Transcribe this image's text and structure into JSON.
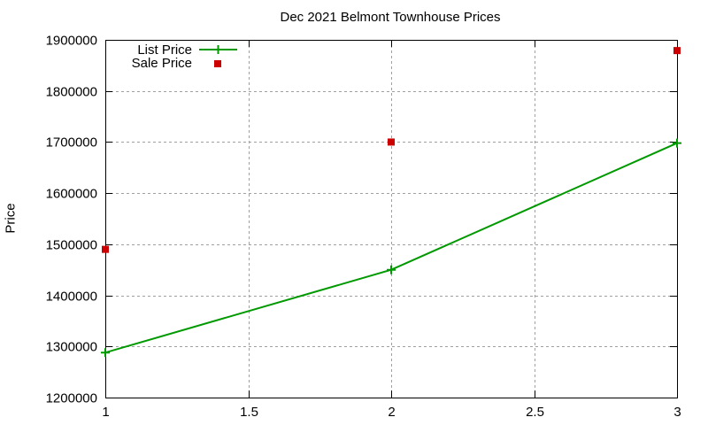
{
  "chart_data": {
    "type": "line",
    "title": "Dec 2021 Belmont Townhouse Prices",
    "xlabel": "",
    "ylabel": "Price",
    "x": [
      1,
      2,
      3
    ],
    "xlim": [
      1,
      3
    ],
    "ylim": [
      1200000,
      1900000
    ],
    "xticks": [
      "1",
      "1.5",
      "2",
      "2.5",
      "3"
    ],
    "yticks": [
      "1200000",
      "1300000",
      "1400000",
      "1500000",
      "1600000",
      "1700000",
      "1800000",
      "1900000"
    ],
    "grid": true,
    "legend_position": "top-left",
    "series": [
      {
        "name": "List Price",
        "style": "linespoints",
        "marker": "plus",
        "color": "#009900",
        "values": [
          1288000,
          1450000,
          1698000
        ]
      },
      {
        "name": "Sale Price",
        "style": "points",
        "marker": "square",
        "color": "#cc0000",
        "values": [
          1490000,
          1700000,
          1879000
        ]
      }
    ]
  },
  "labels": {
    "title": "Dec 2021 Belmont Townhouse Prices",
    "ylabel": "Price",
    "legend_list": "List Price",
    "legend_sale": "Sale Price"
  }
}
